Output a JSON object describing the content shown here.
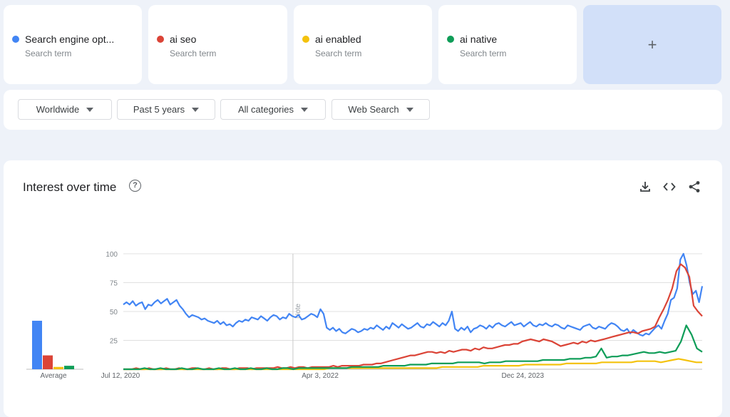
{
  "terms": [
    {
      "label": "Search engine opt...",
      "sub": "Search term",
      "color": "#4285f4"
    },
    {
      "label": "ai seo",
      "sub": "Search term",
      "color": "#db4437"
    },
    {
      "label": "ai enabled",
      "sub": "Search term",
      "color": "#f4c20d"
    },
    {
      "label": "ai native",
      "sub": "Search term",
      "color": "#0f9d58"
    }
  ],
  "add_label": "+",
  "filters": {
    "region": "Worldwide",
    "time": "Past 5 years",
    "category": "All categories",
    "search_type": "Web Search"
  },
  "chart_title": "Interest over time",
  "help_glyph": "?",
  "icons": {
    "download": "download-icon",
    "embed": "embed-code-icon",
    "share": "share-icon"
  },
  "chart_data": {
    "type": "line",
    "title": "Interest over time",
    "ylim": [
      0,
      100
    ],
    "yticks": [
      100,
      75,
      50,
      25
    ],
    "x_tick_labels": [
      "Jul 12, 2020",
      "Apr 3, 2022",
      "Dec 24, 2023"
    ],
    "x_range": [
      "Jul 12, 2020",
      "Jul 2025"
    ],
    "note_label": "Note",
    "grid": true,
    "series": [
      {
        "name": "Search engine opt...",
        "color": "#4285f4",
        "values": [
          56,
          58,
          56,
          59,
          55,
          57,
          58,
          52,
          56,
          55,
          58,
          60,
          57,
          59,
          61,
          56,
          58,
          60,
          55,
          52,
          48,
          45,
          47,
          46,
          45,
          43,
          44,
          42,
          41,
          40,
          42,
          39,
          41,
          38,
          39,
          37,
          40,
          42,
          41,
          43,
          42,
          45,
          44,
          43,
          46,
          44,
          42,
          45,
          47,
          46,
          43,
          45,
          44,
          48,
          46,
          45,
          47,
          43,
          44,
          46,
          48,
          47,
          45,
          52,
          48,
          36,
          34,
          36,
          33,
          35,
          32,
          31,
          33,
          35,
          34,
          32,
          33,
          35,
          34,
          36,
          35,
          38,
          36,
          34,
          37,
          35,
          40,
          38,
          36,
          39,
          37,
          35,
          36,
          38,
          40,
          37,
          36,
          39,
          38,
          41,
          39,
          37,
          40,
          38,
          42,
          50,
          35,
          33,
          36,
          34,
          37,
          32,
          35,
          36,
          38,
          37,
          35,
          38,
          36,
          39,
          40,
          38,
          37,
          39,
          41,
          38,
          39,
          40,
          37,
          39,
          41,
          38,
          37,
          39,
          38,
          40,
          38,
          37,
          39,
          38,
          36,
          35,
          38,
          37,
          36,
          35,
          34,
          37,
          38,
          39,
          36,
          35,
          37,
          36,
          35,
          38,
          40,
          39,
          37,
          34,
          33,
          35,
          31,
          34,
          32,
          30,
          29,
          31,
          30,
          33,
          36,
          38,
          35,
          42,
          48,
          60,
          62,
          70,
          95,
          100,
          90,
          75,
          65,
          68,
          58,
          72
        ]
      },
      {
        "name": "ai seo",
        "color": "#db4437",
        "values": [
          0,
          0,
          0,
          1,
          0,
          0,
          1,
          0,
          0,
          0,
          1,
          0,
          0,
          1,
          0,
          0,
          1,
          1,
          0,
          0,
          1,
          0,
          0,
          1,
          1,
          0,
          0,
          1,
          1,
          1,
          0,
          1,
          1,
          1,
          1,
          1,
          2,
          1,
          1,
          2,
          1,
          2,
          2,
          1,
          2,
          2,
          2,
          2,
          2,
          3,
          2,
          3,
          3,
          3,
          3,
          3,
          4,
          4,
          4,
          5,
          5,
          6,
          7,
          8,
          9,
          10,
          11,
          12,
          12,
          13,
          14,
          15,
          15,
          14,
          15,
          14,
          16,
          15,
          16,
          17,
          17,
          16,
          18,
          17,
          19,
          18,
          18,
          19,
          20,
          21,
          21,
          22,
          22,
          24,
          25,
          26,
          25,
          24,
          26,
          25,
          24,
          22,
          20,
          21,
          22,
          23,
          22,
          24,
          23,
          25,
          24,
          25,
          26,
          27,
          28,
          29,
          30,
          31,
          32,
          32,
          31,
          33,
          34,
          35,
          37,
          45,
          52,
          60,
          70,
          85,
          91,
          88,
          80,
          55,
          50,
          46
        ]
      },
      {
        "name": "ai enabled",
        "color": "#f4c20d",
        "values": [
          0,
          0,
          0,
          0,
          0,
          0,
          0,
          0,
          0,
          0,
          0,
          0,
          0,
          0,
          0,
          0,
          0,
          0,
          0,
          0,
          0,
          0,
          0,
          0,
          0,
          0,
          0,
          0,
          0,
          0,
          0,
          0,
          0,
          0,
          0,
          1,
          1,
          1,
          1,
          1,
          1,
          1,
          1,
          1,
          1,
          1,
          1,
          1,
          1,
          1,
          1,
          1,
          1,
          1,
          2,
          2,
          2,
          2,
          2,
          2,
          2,
          3,
          3,
          3,
          3,
          3,
          3,
          3,
          4,
          4,
          4,
          4,
          4,
          4,
          4,
          5,
          5,
          5,
          5,
          5,
          5,
          6,
          6,
          6,
          6,
          6,
          6,
          7,
          7,
          7,
          7,
          6,
          7,
          8,
          9,
          8,
          7,
          6,
          6
        ]
      },
      {
        "name": "ai native",
        "color": "#0f9d58",
        "values": [
          0,
          0,
          0,
          0,
          1,
          0,
          0,
          1,
          0,
          0,
          0,
          1,
          0,
          0,
          1,
          0,
          0,
          0,
          1,
          0,
          0,
          1,
          0,
          0,
          1,
          0,
          0,
          1,
          0,
          0,
          1,
          1,
          0,
          1,
          1,
          1,
          1,
          1,
          1,
          1,
          1,
          1,
          1,
          2,
          2,
          2,
          2,
          2,
          2,
          3,
          3,
          3,
          3,
          3,
          4,
          4,
          4,
          4,
          5,
          5,
          5,
          5,
          5,
          6,
          6,
          6,
          6,
          6,
          5,
          6,
          6,
          6,
          7,
          7,
          7,
          7,
          7,
          7,
          7,
          8,
          8,
          8,
          8,
          8,
          9,
          9,
          9,
          10,
          10,
          11,
          18,
          10,
          11,
          11,
          12,
          12,
          13,
          14,
          15,
          14,
          14,
          15,
          14,
          15,
          16,
          24,
          38,
          30,
          18,
          15
        ]
      }
    ],
    "average": {
      "label": "Average",
      "values": [
        42,
        12,
        2,
        3
      ]
    }
  }
}
